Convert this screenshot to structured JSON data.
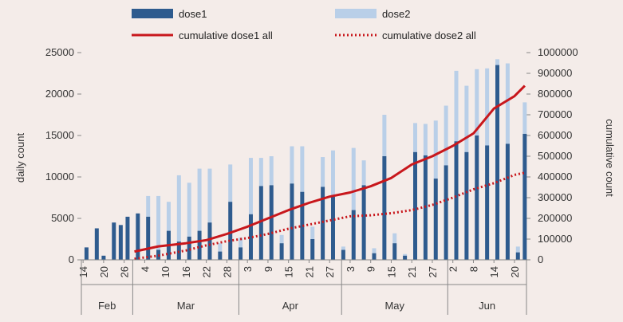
{
  "chart_data": {
    "type": "bar",
    "ylabel": "daily count",
    "y2label": "cumulative count",
    "ylim": [
      0,
      25000
    ],
    "y2lim": [
      0,
      1000000
    ],
    "yticks": [
      "0",
      "5000",
      "10000",
      "15000",
      "20000",
      "25000"
    ],
    "y2ticks": [
      "0",
      "100000",
      "200000",
      "300000",
      "400000",
      "500000",
      "600000",
      "700000",
      "800000",
      "900000",
      "1000000"
    ],
    "xticks": [
      {
        "label": "14",
        "date": "2021-02-14"
      },
      {
        "label": "20",
        "date": "2021-02-20"
      },
      {
        "label": "26",
        "date": "2021-02-26"
      },
      {
        "label": "4",
        "date": "2021-03-04"
      },
      {
        "label": "10",
        "date": "2021-03-10"
      },
      {
        "label": "16",
        "date": "2021-03-16"
      },
      {
        "label": "22",
        "date": "2021-03-22"
      },
      {
        "label": "28",
        "date": "2021-03-28"
      },
      {
        "label": "3",
        "date": "2021-04-03"
      },
      {
        "label": "9",
        "date": "2021-04-09"
      },
      {
        "label": "15",
        "date": "2021-04-15"
      },
      {
        "label": "21",
        "date": "2021-04-21"
      },
      {
        "label": "27",
        "date": "2021-04-27"
      },
      {
        "label": "3",
        "date": "2021-05-03"
      },
      {
        "label": "9",
        "date": "2021-05-09"
      },
      {
        "label": "15",
        "date": "2021-05-15"
      },
      {
        "label": "21",
        "date": "2021-05-21"
      },
      {
        "label": "27",
        "date": "2021-05-27"
      },
      {
        "label": "2",
        "date": "2021-06-02"
      },
      {
        "label": "8",
        "date": "2021-06-08"
      },
      {
        "label": "14",
        "date": "2021-06-14"
      },
      {
        "label": "20",
        "date": "2021-06-20"
      }
    ],
    "months": [
      {
        "label": "Feb",
        "start": "2021-02-14",
        "end": "2021-03-01"
      },
      {
        "label": "Mar",
        "start": "2021-03-01",
        "end": "2021-04-01"
      },
      {
        "label": "Apr",
        "start": "2021-04-01",
        "end": "2021-05-01"
      },
      {
        "label": "May",
        "start": "2021-05-01",
        "end": "2021-06-01"
      },
      {
        "label": "Jun",
        "start": "2021-06-01",
        "end": "2021-06-24"
      }
    ],
    "x_range": [
      "2021-02-14",
      "2021-06-23"
    ],
    "legend": {
      "placement": "top",
      "items": [
        "dose1",
        "dose2",
        "cumulative dose1 all",
        "cumulative dose2 all"
      ]
    },
    "series": [
      {
        "name": "dose1",
        "type": "bar",
        "axis": "left",
        "color": "#2e5b8e",
        "x": [
          "2021-02-15",
          "2021-02-18",
          "2021-02-20",
          "2021-02-23",
          "2021-02-25",
          "2021-02-27",
          "2021-03-02",
          "2021-03-05",
          "2021-03-08",
          "2021-03-11",
          "2021-03-14",
          "2021-03-17",
          "2021-03-20",
          "2021-03-23",
          "2021-03-26",
          "2021-03-29",
          "2021-04-01",
          "2021-04-04",
          "2021-04-07",
          "2021-04-10",
          "2021-04-13",
          "2021-04-16",
          "2021-04-19",
          "2021-04-22",
          "2021-04-25",
          "2021-04-28",
          "2021-05-01",
          "2021-05-04",
          "2021-05-07",
          "2021-05-10",
          "2021-05-13",
          "2021-05-16",
          "2021-05-19",
          "2021-05-22",
          "2021-05-25",
          "2021-05-28",
          "2021-05-31",
          "2021-06-03",
          "2021-06-06",
          "2021-06-09",
          "2021-06-12",
          "2021-06-15",
          "2021-06-18",
          "2021-06-21",
          "2021-06-23"
        ],
        "values": [
          1500,
          3800,
          500,
          4500,
          4200,
          5200,
          5600,
          5200,
          1200,
          3500,
          2200,
          2800,
          3500,
          4500,
          1000,
          7000,
          1500,
          5500,
          8900,
          9000,
          2000,
          9200,
          8200,
          2500,
          8800,
          7600,
          1200,
          6000,
          9000,
          800,
          12500,
          2000,
          500,
          13000,
          12600,
          9800,
          11400,
          14300,
          13000,
          15000,
          13800,
          23500,
          14000,
          900,
          15200
        ]
      },
      {
        "name": "dose2",
        "type": "bar",
        "axis": "left",
        "color": "#b9cfe8",
        "x": [
          "2021-02-15",
          "2021-02-18",
          "2021-02-20",
          "2021-02-23",
          "2021-02-25",
          "2021-02-27",
          "2021-03-02",
          "2021-03-05",
          "2021-03-08",
          "2021-03-11",
          "2021-03-14",
          "2021-03-17",
          "2021-03-20",
          "2021-03-23",
          "2021-03-26",
          "2021-03-29",
          "2021-04-01",
          "2021-04-04",
          "2021-04-07",
          "2021-04-10",
          "2021-04-13",
          "2021-04-16",
          "2021-04-19",
          "2021-04-22",
          "2021-04-25",
          "2021-04-28",
          "2021-05-01",
          "2021-05-04",
          "2021-05-07",
          "2021-05-10",
          "2021-05-13",
          "2021-05-16",
          "2021-05-19",
          "2021-05-22",
          "2021-05-25",
          "2021-05-28",
          "2021-05-31",
          "2021-06-03",
          "2021-06-06",
          "2021-06-09",
          "2021-06-12",
          "2021-06-15",
          "2021-06-18",
          "2021-06-21",
          "2021-06-23"
        ],
        "values": [
          0,
          0,
          0,
          0,
          0,
          0,
          0,
          2500,
          6500,
          3500,
          8000,
          6500,
          7500,
          6500,
          1000,
          4500,
          1200,
          6800,
          3400,
          3500,
          1000,
          4500,
          5500,
          1500,
          3600,
          5600,
          400,
          7500,
          3000,
          600,
          5000,
          1200,
          200,
          3500,
          3800,
          7000,
          7200,
          8500,
          8000,
          8000,
          9300,
          700,
          9700,
          700,
          3800
        ]
      },
      {
        "name": "cumulative dose1 all",
        "type": "line",
        "axis": "right",
        "color": "#c8171c",
        "dash": "solid",
        "x": [
          "2021-03-01",
          "2021-03-08",
          "2021-03-16",
          "2021-03-22",
          "2021-03-28",
          "2021-04-03",
          "2021-04-09",
          "2021-04-15",
          "2021-04-21",
          "2021-04-27",
          "2021-05-03",
          "2021-05-09",
          "2021-05-15",
          "2021-05-21",
          "2021-05-27",
          "2021-06-02",
          "2021-06-08",
          "2021-06-14",
          "2021-06-20",
          "2021-06-23"
        ],
        "values": [
          40000,
          65000,
          80000,
          95000,
          125000,
          160000,
          200000,
          240000,
          275000,
          305000,
          325000,
          355000,
          395000,
          460000,
          500000,
          550000,
          610000,
          730000,
          790000,
          840000
        ]
      },
      {
        "name": "cumulative dose2 all",
        "type": "line",
        "axis": "right",
        "color": "#c8171c",
        "dash": "dotted",
        "x": [
          "2021-03-01",
          "2021-03-08",
          "2021-03-16",
          "2021-03-22",
          "2021-03-28",
          "2021-04-03",
          "2021-04-09",
          "2021-04-15",
          "2021-04-21",
          "2021-04-27",
          "2021-05-03",
          "2021-05-09",
          "2021-05-15",
          "2021-05-21",
          "2021-05-27",
          "2021-06-02",
          "2021-06-08",
          "2021-06-14",
          "2021-06-20",
          "2021-06-23"
        ],
        "values": [
          5000,
          20000,
          45000,
          70000,
          90000,
          105000,
          125000,
          150000,
          170000,
          190000,
          210000,
          215000,
          225000,
          240000,
          265000,
          300000,
          340000,
          370000,
          410000,
          420000
        ]
      }
    ]
  }
}
